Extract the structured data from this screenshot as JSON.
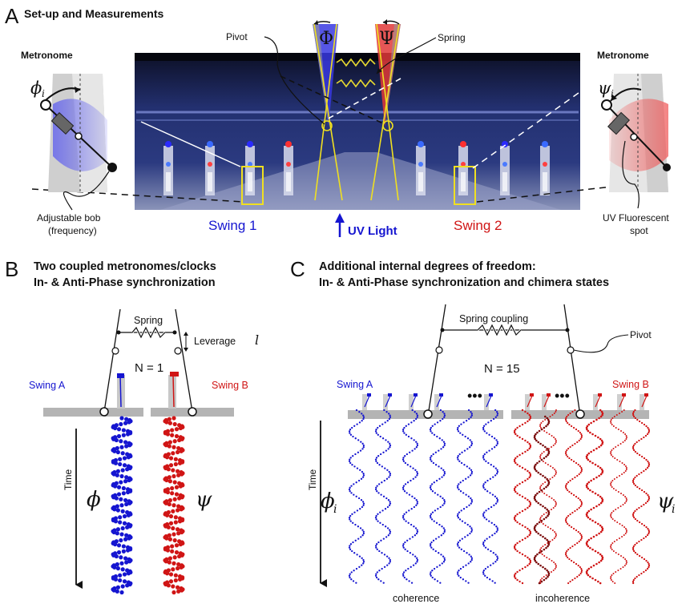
{
  "panel_a": {
    "letter": "A",
    "title": "Set-up and Measurements",
    "metronome_left": "Metronome",
    "metronome_right": "Metronome",
    "pivot": "Pivot",
    "spring": "Spring",
    "phi_big": "Φ",
    "psi_big": "Ψ",
    "phi_i_sym": "ϕ",
    "psi_i_sym": "ψ",
    "sub_i": "i",
    "swing1": "Swing 1",
    "swing2": "Swing 2",
    "uv_light": "UV Light",
    "bob_line1": "Adjustable bob",
    "bob_line2": "(frequency)",
    "uv_spot_line1": "UV Fluorescent",
    "uv_spot_line2": "spot"
  },
  "panel_b": {
    "letter": "B",
    "title_line1": "Two coupled metronomes/clocks",
    "title_line2": "In- & Anti-Phase synchronization",
    "spring": "Spring",
    "leverage": "Leverage",
    "leverage_sym": "l",
    "n_label": "N = 1",
    "swing_a": "Swing A",
    "swing_b": "Swing B",
    "time": "Time",
    "phi": "ϕ",
    "psi": "ψ"
  },
  "panel_c": {
    "letter": "C",
    "title_line1": "Additional internal degrees of freedom:",
    "title_line2": "In- & Anti-Phase synchronization and chimera states",
    "spring_coupling": "Spring coupling",
    "pivot": "Pivot",
    "n_label": "N = 15",
    "swing_a": "Swing A",
    "swing_b": "Swing B",
    "time": "Time",
    "phi_i_sym": "ϕ",
    "psi_i_sym": "ψ",
    "sub_i": "i",
    "coherence": "coherence",
    "incoherence": "incoherence"
  },
  "colors": {
    "blue": "#1515d0",
    "red": "#d01515",
    "photo_bg": "#141a3c",
    "highlight": "#f0e020",
    "platform": "#b4b4b4"
  }
}
